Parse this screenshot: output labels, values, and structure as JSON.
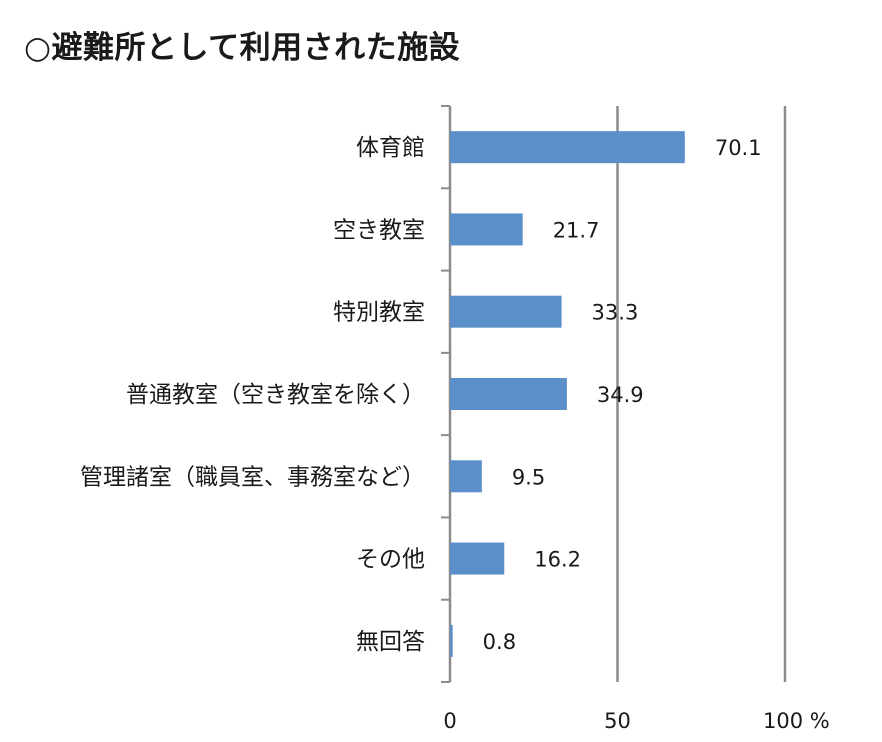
{
  "chart_data": {
    "type": "bar",
    "orientation": "horizontal",
    "title": "○避難所として利用された施設",
    "categories": [
      "体育館",
      "空き教室",
      "特別教室",
      "普通教室（空き教室を除く）",
      "管理諸室（職員室、事務室など）",
      "その他",
      "無回答"
    ],
    "values": [
      70.1,
      21.7,
      33.3,
      34.9,
      9.5,
      16.2,
      0.8
    ],
    "value_labels": [
      "70.1",
      "21.7",
      "33.3",
      "34.9",
      "9.5",
      "16.2",
      "0.8"
    ],
    "xlim": [
      0,
      100
    ],
    "xticks": [
      "0",
      "50",
      "100 %"
    ],
    "bar_color": "#5b8fc9",
    "grid": true
  }
}
